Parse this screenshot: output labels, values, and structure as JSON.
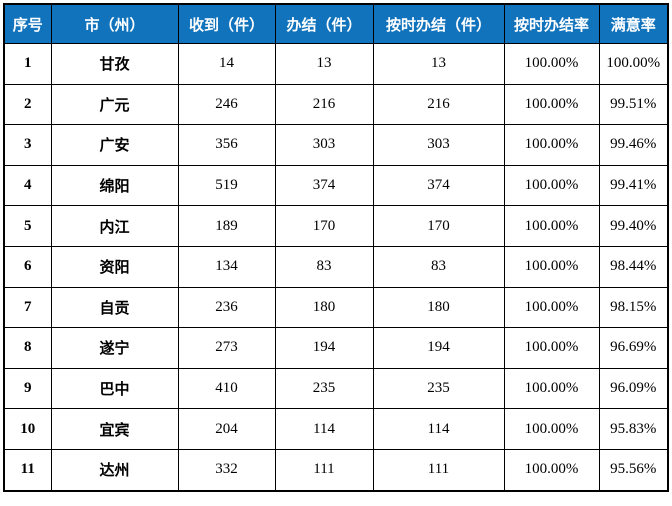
{
  "colors": {
    "header_bg": "#1173BC",
    "header_text": "#FFFFFF",
    "border": "#000000",
    "body_text": "#000000",
    "page_bg": "#FFFFFF"
  },
  "table": {
    "headers": [
      "序号",
      "市（州）",
      "收到（件）",
      "办结（件）",
      "按时办结（件）",
      "按时办结率",
      "满意率"
    ],
    "rows": [
      {
        "no": "1",
        "city": "甘孜",
        "received": "14",
        "completed": "13",
        "on_time": "13",
        "on_time_rate": "100.00%",
        "satisfaction": "100.00%"
      },
      {
        "no": "2",
        "city": "广元",
        "received": "246",
        "completed": "216",
        "on_time": "216",
        "on_time_rate": "100.00%",
        "satisfaction": "99.51%"
      },
      {
        "no": "3",
        "city": "广安",
        "received": "356",
        "completed": "303",
        "on_time": "303",
        "on_time_rate": "100.00%",
        "satisfaction": "99.46%"
      },
      {
        "no": "4",
        "city": "绵阳",
        "received": "519",
        "completed": "374",
        "on_time": "374",
        "on_time_rate": "100.00%",
        "satisfaction": "99.41%"
      },
      {
        "no": "5",
        "city": "内江",
        "received": "189",
        "completed": "170",
        "on_time": "170",
        "on_time_rate": "100.00%",
        "satisfaction": "99.40%"
      },
      {
        "no": "6",
        "city": "资阳",
        "received": "134",
        "completed": "83",
        "on_time": "83",
        "on_time_rate": "100.00%",
        "satisfaction": "98.44%"
      },
      {
        "no": "7",
        "city": "自贡",
        "received": "236",
        "completed": "180",
        "on_time": "180",
        "on_time_rate": "100.00%",
        "satisfaction": "98.15%"
      },
      {
        "no": "8",
        "city": "遂宁",
        "received": "273",
        "completed": "194",
        "on_time": "194",
        "on_time_rate": "100.00%",
        "satisfaction": "96.69%"
      },
      {
        "no": "9",
        "city": "巴中",
        "received": "410",
        "completed": "235",
        "on_time": "235",
        "on_time_rate": "100.00%",
        "satisfaction": "96.09%"
      },
      {
        "no": "10",
        "city": "宜宾",
        "received": "204",
        "completed": "114",
        "on_time": "114",
        "on_time_rate": "100.00%",
        "satisfaction": "95.83%"
      },
      {
        "no": "11",
        "city": "达州",
        "received": "332",
        "completed": "111",
        "on_time": "111",
        "on_time_rate": "100.00%",
        "satisfaction": "95.56%"
      }
    ]
  },
  "chart_data": {
    "type": "table",
    "title": "",
    "columns": [
      "序号",
      "市（州）",
      "收到（件）",
      "办结（件）",
      "按时办结（件）",
      "按时办结率",
      "满意率"
    ],
    "rows": [
      [
        1,
        "甘孜",
        14,
        13,
        13,
        "100.00%",
        "100.00%"
      ],
      [
        2,
        "广元",
        246,
        216,
        216,
        "100.00%",
        "99.51%"
      ],
      [
        3,
        "广安",
        356,
        303,
        303,
        "100.00%",
        "99.46%"
      ],
      [
        4,
        "绵阳",
        519,
        374,
        374,
        "100.00%",
        "99.41%"
      ],
      [
        5,
        "内江",
        189,
        170,
        170,
        "100.00%",
        "99.40%"
      ],
      [
        6,
        "资阳",
        134,
        83,
        83,
        "100.00%",
        "98.44%"
      ],
      [
        7,
        "自贡",
        236,
        180,
        180,
        "100.00%",
        "98.15%"
      ],
      [
        8,
        "遂宁",
        273,
        194,
        194,
        "100.00%",
        "96.69%"
      ],
      [
        9,
        "巴中",
        410,
        235,
        235,
        "100.00%",
        "96.09%"
      ],
      [
        10,
        "宜宾",
        204,
        114,
        114,
        "100.00%",
        "95.83%"
      ],
      [
        11,
        "达州",
        332,
        111,
        111,
        "100.00%",
        "95.56%"
      ]
    ]
  }
}
